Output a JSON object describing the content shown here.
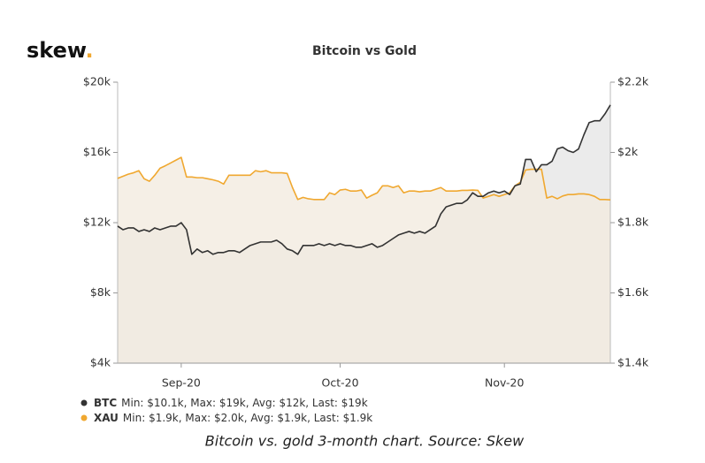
{
  "chart_data": {
    "type": "line",
    "logo": "skew",
    "logo_dot": ".",
    "title": "Bitcoin vs Gold",
    "caption": "Bitcoin vs. gold 3-month chart. Source: Skew",
    "categories": [
      null,
      null,
      null,
      null,
      null,
      null,
      null,
      null,
      null,
      null,
      null,
      null,
      "Sep-20",
      null,
      null,
      null,
      null,
      null,
      null,
      null,
      null,
      null,
      null,
      null,
      null,
      null,
      null,
      null,
      null,
      null,
      null,
      null,
      null,
      null,
      null,
      null,
      null,
      null,
      null,
      null,
      null,
      null,
      "Oct-20",
      null,
      null,
      null,
      null,
      null,
      null,
      null,
      null,
      null,
      null,
      null,
      null,
      null,
      null,
      null,
      null,
      null,
      null,
      null,
      null,
      null,
      null,
      null,
      null,
      null,
      null,
      null,
      null,
      null,
      null,
      "Nov-20",
      null,
      null,
      null,
      null,
      null,
      null,
      null,
      null,
      null,
      null,
      null,
      null,
      null,
      null,
      null,
      null,
      null,
      null,
      null,
      null
    ],
    "ylim": [
      4000,
      20000
    ],
    "yticks": [
      {
        "value": 4000,
        "label": "$4k"
      },
      {
        "value": 8000,
        "label": "$8k"
      },
      {
        "value": 12000,
        "label": "$12k"
      },
      {
        "value": 16000,
        "label": "$16k"
      },
      {
        "value": 20000,
        "label": "$20k"
      }
    ],
    "y2lim": [
      1400,
      2200
    ],
    "y2ticks": [
      {
        "value": 1400,
        "label": "$1.4k"
      },
      {
        "value": 1600,
        "label": "$1.6k"
      },
      {
        "value": 1800,
        "label": "$1.8k"
      },
      {
        "value": 2000,
        "label": "$2k"
      },
      {
        "value": 2200,
        "label": "$2.2k"
      }
    ],
    "series": [
      {
        "name": "BTC",
        "color": "#333333",
        "fill": "#e4e4e4",
        "axis": "y",
        "stats": "Min: $10.1k, Max: $19k, Avg: $12k, Last: $19k",
        "values": [
          11800,
          11600,
          11700,
          11700,
          11500,
          11600,
          11500,
          11700,
          11600,
          11700,
          11800,
          11800,
          12000,
          11600,
          10200,
          10500,
          10300,
          10400,
          10200,
          10300,
          10300,
          10400,
          10400,
          10300,
          10500,
          10700,
          10800,
          10900,
          10900,
          10900,
          11000,
          10800,
          10500,
          10400,
          10200,
          10700,
          10700,
          10700,
          10800,
          10700,
          10800,
          10700,
          10800,
          10700,
          10700,
          10600,
          10600,
          10700,
          10800,
          10600,
          10700,
          10900,
          11100,
          11300,
          11400,
          11500,
          11400,
          11500,
          11400,
          11600,
          11800,
          12500,
          12900,
          13000,
          13100,
          13100,
          13300,
          13700,
          13500,
          13500,
          13700,
          13800,
          13700,
          13800,
          13600,
          14100,
          14200,
          15600,
          15600,
          14900,
          15300,
          15300,
          15500,
          16200,
          16300,
          16100,
          16000,
          16200,
          17000,
          17700,
          17800,
          17800,
          18200,
          18700
        ]
      },
      {
        "name": "XAU",
        "color": "#f0a830",
        "fill": "#f2ebe0",
        "axis": "y2",
        "stats": "Min: $1.9k, Max: $2.0k, Avg: $1.9k, Last: $1.9k",
        "values": [
          1926,
          1932,
          1938,
          1942,
          1948,
          1925,
          1918,
          1935,
          1955,
          1962,
          1970,
          1978,
          1986,
          1930,
          1930,
          1928,
          1928,
          1925,
          1922,
          1918,
          1910,
          1935,
          1935,
          1935,
          1935,
          1935,
          1948,
          1945,
          1948,
          1942,
          1942,
          1942,
          1940,
          1900,
          1866,
          1872,
          1868,
          1866,
          1866,
          1866,
          1885,
          1880,
          1893,
          1895,
          1890,
          1890,
          1893,
          1870,
          1878,
          1885,
          1905,
          1905,
          1900,
          1905,
          1885,
          1890,
          1890,
          1888,
          1890,
          1890,
          1895,
          1900,
          1890,
          1890,
          1890,
          1892,
          1892,
          1893,
          1892,
          1870,
          1875,
          1880,
          1875,
          1880,
          1885,
          1905,
          1915,
          1950,
          1952,
          1952,
          1952,
          1870,
          1875,
          1868,
          1876,
          1880,
          1880,
          1882,
          1882,
          1880,
          1875,
          1866,
          1866,
          1865
        ]
      }
    ],
    "legend": "bottom-left"
  }
}
